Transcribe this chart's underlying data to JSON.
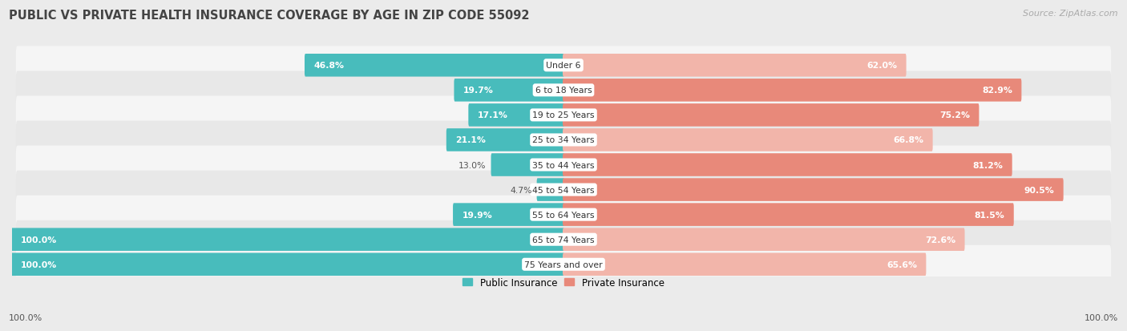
{
  "title": "PUBLIC VS PRIVATE HEALTH INSURANCE COVERAGE BY AGE IN ZIP CODE 55092",
  "source": "Source: ZipAtlas.com",
  "categories": [
    "Under 6",
    "6 to 18 Years",
    "19 to 25 Years",
    "25 to 34 Years",
    "35 to 44 Years",
    "45 to 54 Years",
    "55 to 64 Years",
    "65 to 74 Years",
    "75 Years and over"
  ],
  "public_values": [
    46.8,
    19.7,
    17.1,
    21.1,
    13.0,
    4.7,
    19.9,
    100.0,
    100.0
  ],
  "private_values": [
    62.0,
    82.9,
    75.2,
    66.8,
    81.2,
    90.5,
    81.5,
    72.6,
    65.6
  ],
  "public_color": "#48BCBC",
  "private_color": "#E8897A",
  "private_color_light": "#F2B5AA",
  "white": "#ffffff",
  "bg_color": "#ebebeb",
  "row_colors": [
    "#f5f5f5",
    "#e8e8e8"
  ],
  "label_white": "#ffffff",
  "label_dark": "#555555",
  "title_color": "#444444",
  "source_color": "#aaaaaa",
  "legend_labels": [
    "Public Insurance",
    "Private Insurance"
  ],
  "bottom_label": "100.0%",
  "figwidth": 14.06,
  "figheight": 4.14,
  "dpi": 100
}
